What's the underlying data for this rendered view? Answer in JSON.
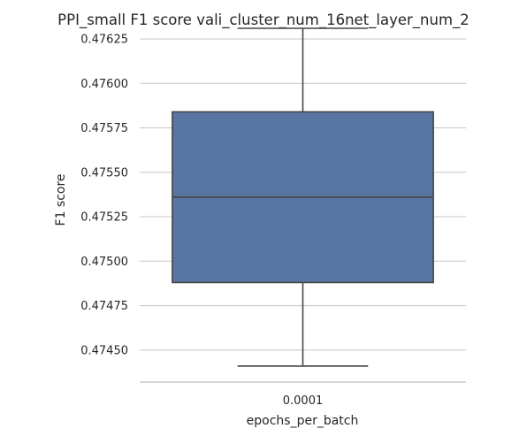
{
  "chart_data": {
    "type": "box",
    "title": "PPI_small F1 score vali_cluster_num_16net_layer_num_2",
    "xlabel": "epochs_per_batch",
    "ylabel": "F1 score",
    "categories": [
      "0.0001"
    ],
    "ylim": [
      0.47432,
      0.47632
    ],
    "yticks": [
      0.4745,
      0.47475,
      0.475,
      0.47525,
      0.4755,
      0.47575,
      0.476,
      0.47625
    ],
    "ytick_labels": [
      "0.47450",
      "0.47475",
      "0.47500",
      "0.47525",
      "0.47550",
      "0.47575",
      "0.47600",
      "0.47625"
    ],
    "grid": true,
    "series": [
      {
        "category": "0.0001",
        "whisker_low": 0.47441,
        "q1": 0.47488,
        "median": 0.47536,
        "q3": 0.47584,
        "whisker_high": 0.47631,
        "color": "#5875a4"
      }
    ],
    "colors": {
      "box_fill": "#5875a4",
      "line": "#464646",
      "grid": "#cccccc",
      "text": "#262626",
      "axis": "#cccccc"
    }
  }
}
